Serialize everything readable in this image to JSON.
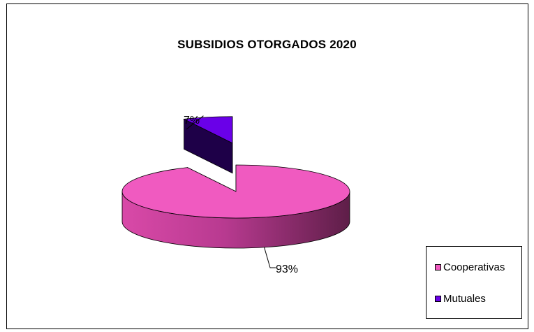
{
  "chart_data": {
    "type": "pie",
    "title": "SUBSIDIOS OTORGADOS 2020",
    "categories": [
      "Cooperativas",
      "Mutuales"
    ],
    "values": [
      93,
      7
    ],
    "data_labels": [
      "93%",
      "7%"
    ],
    "colors": [
      "#f05ac0",
      "#6a00e8"
    ],
    "exploded": "Mutuales",
    "legend_position": "bottom-right",
    "three_d": true
  }
}
